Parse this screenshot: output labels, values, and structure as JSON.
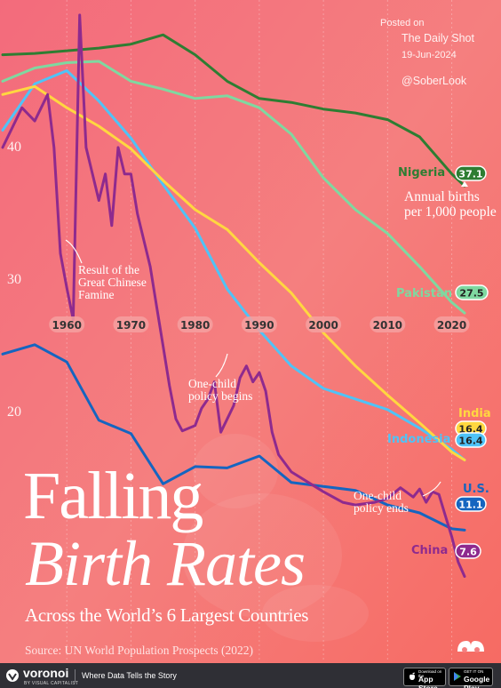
{
  "posted": {
    "label": "Posted on",
    "source": "The Daily Shot",
    "date": "19-Jun-2024"
  },
  "handle": "@SoberLook",
  "title_line1": "Falling",
  "title_line2": "Birth Rates",
  "subtitle": "Across the World’s 6 Largest Countries",
  "source": "Source: UN World Population Prospects (2022)",
  "footer": {
    "logo": "voronoi",
    "logo_small": "BY VISUAL CAPITALIST",
    "tagline": "Where Data Tells the Story",
    "app_store": {
      "small": "Download on the",
      "big": "App Store"
    },
    "google_play": {
      "small": "GET IT ON",
      "big": "Google Play"
    }
  },
  "colors": {
    "background": "#f47f7f",
    "nigeria": "#2e7d32",
    "pakistan": "#7fd8a0",
    "india": "#ffd740",
    "indonesia": "#4fc3f7",
    "us": "#1565c0",
    "china": "#8e2a8e"
  },
  "chart_data": {
    "type": "line",
    "xlim": [
      1950,
      2022
    ],
    "ylim": [
      12,
      51
    ],
    "x_ticks": [
      1960,
      1970,
      1980,
      1990,
      2000,
      2010,
      2020
    ],
    "y_ticks": [
      20,
      30,
      40
    ],
    "series": [
      {
        "name": "Nigeria",
        "label": "37.1",
        "x": [
          1950,
          1955,
          1960,
          1965,
          1970,
          1975,
          1980,
          1985,
          1990,
          1995,
          2000,
          2005,
          2010,
          2015,
          2020,
          2022
        ],
        "values": [
          47,
          47.1,
          47.3,
          47.5,
          47.8,
          48.5,
          47,
          45,
          43.7,
          43.4,
          42.9,
          42.6,
          42.1,
          40.8,
          38,
          37.1
        ]
      },
      {
        "name": "Pakistan",
        "label": "27.5",
        "x": [
          1950,
          1955,
          1960,
          1965,
          1970,
          1975,
          1980,
          1985,
          1990,
          1995,
          2000,
          2005,
          2010,
          2015,
          2020,
          2022
        ],
        "values": [
          45,
          46,
          46.4,
          46.5,
          45,
          44.4,
          43.7,
          43.9,
          43,
          41,
          37.7,
          35.3,
          33.5,
          31,
          28.3,
          27.5
        ]
      },
      {
        "name": "India",
        "label": "16.4",
        "x": [
          1950,
          1955,
          1960,
          1965,
          1970,
          1975,
          1980,
          1985,
          1990,
          1995,
          2000,
          2005,
          2010,
          2015,
          2020,
          2022
        ],
        "values": [
          44,
          44.6,
          43,
          41.6,
          39.9,
          37.5,
          35.3,
          33.8,
          31.3,
          29,
          26,
          23.5,
          21.3,
          19.2,
          17,
          16.4
        ]
      },
      {
        "name": "Indonesia",
        "label": "16.4",
        "x": [
          1950,
          1955,
          1960,
          1965,
          1970,
          1975,
          1980,
          1985,
          1990,
          1995,
          2000,
          2005,
          2010,
          2015,
          2020,
          2022
        ],
        "values": [
          41.3,
          44.8,
          45.8,
          43.5,
          40.7,
          37.2,
          33.9,
          29.3,
          26.2,
          23.5,
          21.8,
          21,
          20.2,
          18.8,
          17.2,
          16.4
        ]
      },
      {
        "name": "U.S.",
        "label": "11.1",
        "x": [
          1950,
          1955,
          1960,
          1965,
          1970,
          1975,
          1980,
          1985,
          1990,
          1995,
          2000,
          2005,
          2010,
          2015,
          2020,
          2022
        ],
        "values": [
          24.4,
          25.1,
          23.8,
          19.4,
          18.4,
          14.6,
          15.9,
          15.8,
          16.7,
          14.7,
          14.4,
          14.1,
          13,
          12.4,
          11.2,
          11.1
        ]
      },
      {
        "name": "China",
        "label": "7.6",
        "x": [
          1950,
          1953,
          1955,
          1957,
          1958,
          1959,
          1960,
          1961,
          1962,
          1963,
          1964,
          1965,
          1966,
          1967,
          1968,
          1969,
          1970,
          1971,
          1972,
          1973,
          1974,
          1975,
          1976,
          1977,
          1978,
          1979,
          1980,
          1981,
          1982,
          1983,
          1984,
          1985,
          1986,
          1987,
          1988,
          1989,
          1990,
          1991,
          1992,
          1993,
          1995,
          1998,
          2000,
          2003,
          2005,
          2008,
          2010,
          2012,
          2014,
          2015,
          2016,
          2017,
          2018,
          2019,
          2020,
          2021,
          2022
        ],
        "values": [
          40,
          43,
          42,
          44,
          40,
          32,
          29.4,
          27,
          50,
          40,
          38,
          36,
          38,
          34.1,
          40,
          38,
          38,
          35,
          33,
          31,
          28,
          25,
          22,
          19.5,
          18.6,
          18.8,
          19,
          20.3,
          21,
          22.3,
          18.5,
          19.5,
          20.5,
          22.6,
          23.5,
          22.3,
          23,
          21.6,
          18.5,
          16.8,
          15.5,
          14.6,
          14,
          13.2,
          13,
          13.2,
          13.5,
          14.3,
          13.6,
          14.2,
          13.2,
          14,
          13.8,
          12.2,
          10.6,
          8.7,
          7.6
        ]
      }
    ],
    "annotations": [
      {
        "text": [
          "Result of the",
          "Great Chinese",
          "Famine"
        ],
        "x": 1961,
        "y": 31
      },
      {
        "text": [
          "One-child",
          "policy begins"
        ],
        "x": 1980,
        "y": 18
      },
      {
        "text": [
          "One-child",
          "policy ends"
        ],
        "x": 2013,
        "y": 12
      },
      {
        "text": [
          "Annual births",
          "per 1,000 people"
        ],
        "x": 2015,
        "y": 36
      }
    ]
  }
}
